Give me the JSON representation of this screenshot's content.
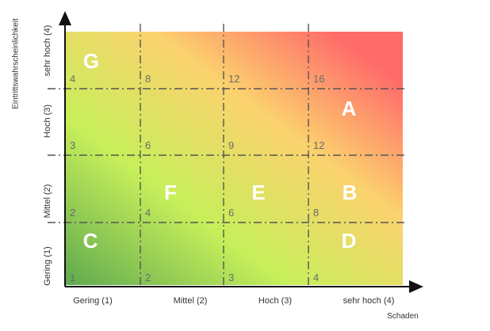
{
  "axes": {
    "y_title": "Eintrittswahrscheinlichkeit",
    "x_title": "Schaden",
    "x_ticks": [
      "Gering (1)",
      "Mittel (2)",
      "Hoch (3)",
      "sehr hoch (4)"
    ],
    "y_ticks": [
      "Gering (1)",
      "Mittel (2)",
      "Hoch (3)",
      "sehr hoch (4)"
    ]
  },
  "grid": {
    "cells": [
      {
        "row": 1,
        "col": 1,
        "value": "1"
      },
      {
        "row": 1,
        "col": 2,
        "value": "2"
      },
      {
        "row": 1,
        "col": 3,
        "value": "3"
      },
      {
        "row": 1,
        "col": 4,
        "value": "4"
      },
      {
        "row": 2,
        "col": 1,
        "value": "2"
      },
      {
        "row": 2,
        "col": 2,
        "value": "4"
      },
      {
        "row": 2,
        "col": 3,
        "value": "6"
      },
      {
        "row": 2,
        "col": 4,
        "value": "8"
      },
      {
        "row": 3,
        "col": 1,
        "value": "3"
      },
      {
        "row": 3,
        "col": 2,
        "value": "6"
      },
      {
        "row": 3,
        "col": 3,
        "value": "9"
      },
      {
        "row": 3,
        "col": 4,
        "value": "12"
      },
      {
        "row": 4,
        "col": 1,
        "value": "4"
      },
      {
        "row": 4,
        "col": 2,
        "value": "8"
      },
      {
        "row": 4,
        "col": 3,
        "value": "12"
      },
      {
        "row": 4,
        "col": 4,
        "value": "16"
      }
    ],
    "zones": [
      {
        "label": "G",
        "row": 4,
        "col": 1
      },
      {
        "label": "A",
        "row": 3,
        "col": 4
      },
      {
        "label": "F",
        "row": 2,
        "col": 2
      },
      {
        "label": "E",
        "row": 2,
        "col": 3
      },
      {
        "label": "B",
        "row": 2,
        "col": 4
      },
      {
        "label": "C",
        "row": 1,
        "col": 1
      },
      {
        "label": "D",
        "row": 1,
        "col": 4
      }
    ]
  },
  "colors": {
    "low": "#5fa94f",
    "mid": "#c7ef5a",
    "high": "#fbd26e",
    "very_high": "#ff6a6a",
    "grid_line": "#555555",
    "cell_number": "#6b6b6b",
    "zone_letter": "#ffffff"
  }
}
